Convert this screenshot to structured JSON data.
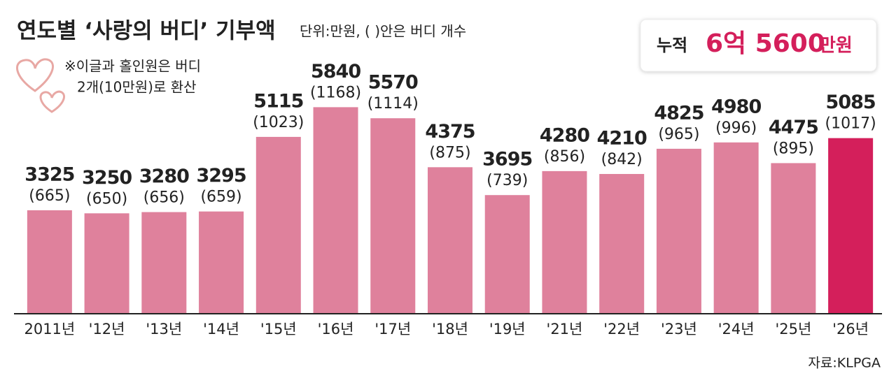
{
  "chart_data": {
    "type": "bar",
    "title": "연도별 ‘사랑의 버디’ 기부액",
    "subtitle": "단위:만원, (   )안은 버디 개수",
    "note": [
      "※이글과 홀인원은 버디",
      "2개(10만원)로 환산"
    ],
    "total": {
      "label": "누적",
      "amount": "6억 5600",
      "unit": "만원"
    },
    "source": "자료:KLPGA",
    "categories": [
      "2011년",
      "'12년",
      "'13년",
      "'14년",
      "'15년",
      "'16년",
      "'17년",
      "'18년",
      "'19년",
      "'21년",
      "'22년",
      "'23년",
      "'24년",
      "'25년",
      "'26년"
    ],
    "values": [
      3325,
      3250,
      3280,
      3295,
      5115,
      5840,
      5570,
      4375,
      3695,
      4280,
      4210,
      4825,
      4980,
      4475,
      5085
    ],
    "count_labels": [
      "(665)",
      "(650)",
      "(656)",
      "(659)",
      "(1023)",
      "(1168)",
      "(1114)",
      "(875)",
      "(739)",
      "(856)",
      "(842)",
      "(965)",
      "(996)",
      "(895)",
      "(1017)"
    ],
    "colors": [
      "#df819c",
      "#df819c",
      "#df819c",
      "#df819c",
      "#df819c",
      "#df819c",
      "#df819c",
      "#df819c",
      "#df819c",
      "#df819c",
      "#df819c",
      "#df819c",
      "#df819c",
      "#df819c",
      "#d41f5b"
    ],
    "ylim": [
      800,
      6000
    ]
  }
}
